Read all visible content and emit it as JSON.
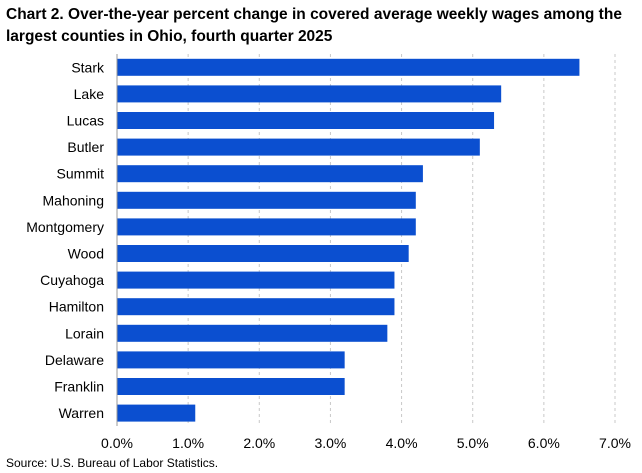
{
  "title": "Chart 2. Over-the-year percent change in covered average weekly wages among the largest counties in Ohio, fourth quarter 2025",
  "source": "Source: U.S. Bureau of Labor Statistics.",
  "colors": {
    "bar": "#0b4fd0",
    "grid": "#c8c8c8",
    "axis": "#999999"
  },
  "chart_data": {
    "type": "bar",
    "orientation": "horizontal",
    "title": "Chart 2. Over-the-year percent change in covered average weekly wages among the largest counties in Ohio, fourth quarter 2025",
    "categories": [
      "Stark",
      "Lake",
      "Lucas",
      "Butler",
      "Summit",
      "Mahoning",
      "Montgomery",
      "Wood",
      "Cuyahoga",
      "Hamilton",
      "Lorain",
      "Delaware",
      "Franklin",
      "Warren"
    ],
    "values": [
      6.5,
      5.4,
      5.3,
      5.1,
      4.3,
      4.2,
      4.2,
      4.1,
      3.9,
      3.9,
      3.8,
      3.2,
      3.2,
      1.1
    ],
    "xlim": [
      0,
      7
    ],
    "ticks": [
      "0.0%",
      "1.0%",
      "2.0%",
      "3.0%",
      "4.0%",
      "5.0%",
      "6.0%",
      "7.0%"
    ],
    "grid": "vertical dashed",
    "legend": "none"
  }
}
